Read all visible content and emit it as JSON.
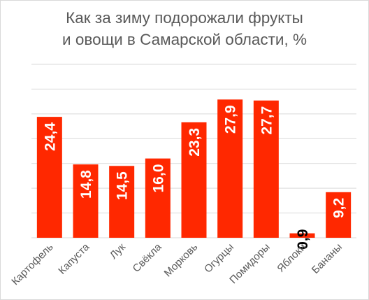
{
  "chart_data": {
    "type": "bar",
    "title_lines": [
      "Как за зиму подорожали фрукты",
      "и овощи в Самарской области, %"
    ],
    "categories": [
      "Картофель",
      "Капуста",
      "Лук",
      "Свёкла",
      "Морковь",
      "Огурцы",
      "Помидоры",
      "Яблоки",
      "Бананы"
    ],
    "values": [
      24.4,
      14.8,
      14.5,
      16.0,
      23.3,
      27.9,
      27.7,
      0.9,
      9.2
    ],
    "value_labels": [
      "24,4",
      "14,8",
      "14,5",
      "16,0",
      "23,3",
      "27,9",
      "27,7",
      "0,9",
      "9,2"
    ],
    "ylim": [
      0,
      35
    ],
    "grid": true,
    "colors": {
      "bar": "#ff2800",
      "label_inside": "#ffffff",
      "label_outside": "#000000",
      "gridline": "#d9d9d9",
      "axis_text": "#595959"
    }
  }
}
